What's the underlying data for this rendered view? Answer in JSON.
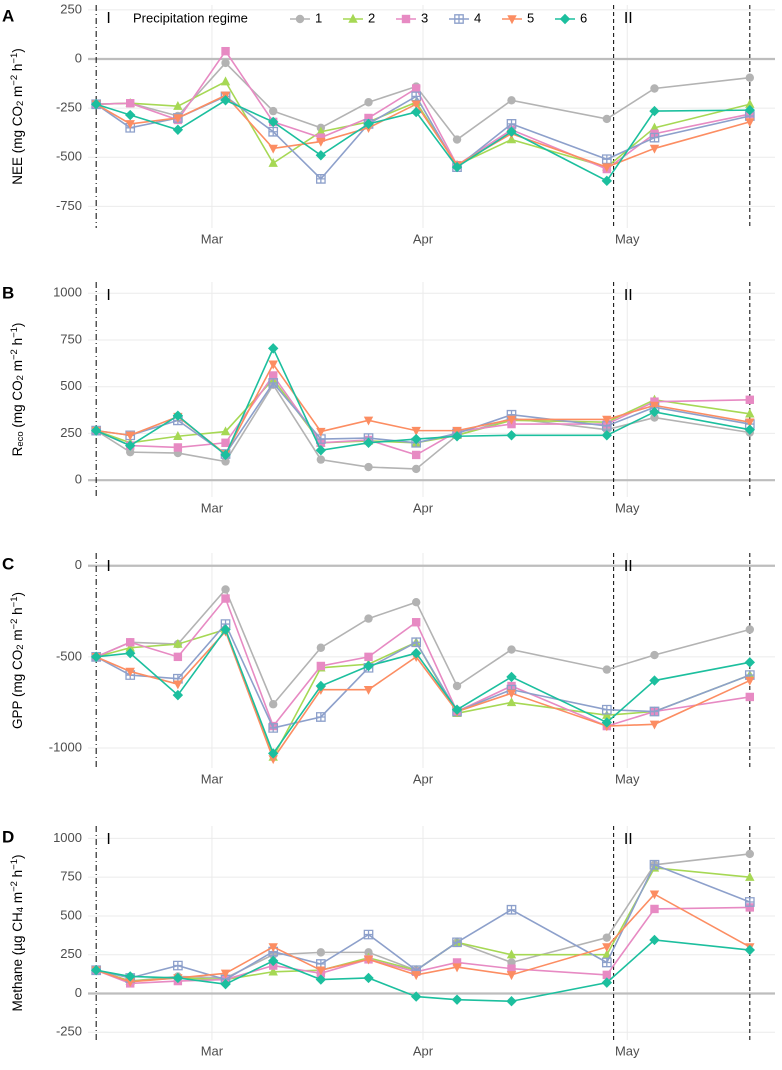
{
  "chart_data": [
    {
      "type": "line",
      "letter": "A",
      "ylabel": [
        [
          "NEE (mg CO",
          ""
        ],
        [
          "2",
          "sub"
        ],
        [
          " m",
          ""
        ],
        [
          "−2",
          "sup"
        ],
        [
          " h",
          ""
        ],
        [
          "−1",
          "sup"
        ],
        [
          ")",
          ""
        ]
      ],
      "legend_title": "Precipitation regime",
      "x": [
        43,
        48,
        55,
        62,
        69,
        76,
        83,
        90,
        96,
        104,
        118,
        125,
        139
      ],
      "xlim": [
        41.8,
        142.7
      ],
      "xticks": [
        {
          "value": 60,
          "label": "Mar"
        },
        {
          "value": 91,
          "label": "Apr"
        },
        {
          "value": 121,
          "label": "May"
        }
      ],
      "ylim": [
        -860,
        275
      ],
      "yticks": [
        -750,
        -500,
        -250,
        0,
        250
      ],
      "grid": true,
      "hline": 0,
      "vlines": [
        {
          "x": 43,
          "style": "dashdot"
        },
        {
          "x": 119,
          "style": "dashed"
        },
        {
          "x": 139,
          "style": "dashed"
        }
      ],
      "annotations": [
        {
          "text": "I",
          "x": 44.5
        },
        {
          "text": "II",
          "x": 120.5
        }
      ],
      "series": [
        {
          "name": "1",
          "color": "#b3b3b3",
          "marker": "circle",
          "values": [
            -230,
            -225,
            -290,
            -20,
            -265,
            -350,
            -220,
            -140,
            -410,
            -210,
            -305,
            -150,
            -95
          ]
        },
        {
          "name": "2",
          "color": "#a6d854",
          "marker": "triangle",
          "values": [
            -230,
            -225,
            -240,
            -115,
            -530,
            -370,
            -320,
            -220,
            -540,
            -410,
            -550,
            -350,
            -230
          ]
        },
        {
          "name": "3",
          "color": "#e78ac3",
          "marker": "square",
          "values": [
            -230,
            -225,
            -310,
            40,
            -320,
            -400,
            -300,
            -150,
            -540,
            -360,
            -560,
            -380,
            -280
          ]
        },
        {
          "name": "4",
          "color": "#8da0cb",
          "marker": "squarecross",
          "values": [
            -230,
            -350,
            -300,
            -190,
            -370,
            -610,
            -330,
            -190,
            -550,
            -330,
            -510,
            -400,
            -290
          ]
        },
        {
          "name": "5",
          "color": "#fc8d62",
          "marker": "downtriangle",
          "values": [
            -230,
            -330,
            -300,
            -185,
            -455,
            -420,
            -350,
            -230,
            -540,
            -380,
            -550,
            -455,
            -320
          ]
        },
        {
          "name": "6",
          "color": "#1cbf9e",
          "marker": "diamond",
          "values": [
            -230,
            -285,
            -360,
            -210,
            -320,
            -490,
            -330,
            -270,
            -550,
            -370,
            -620,
            -265,
            -260
          ]
        }
      ]
    },
    {
      "type": "line",
      "letter": "B",
      "ylabel": [
        [
          "R",
          ""
        ],
        [
          "eco",
          "sub"
        ],
        [
          " (mg CO",
          ""
        ],
        [
          "2",
          "sub"
        ],
        [
          " m",
          ""
        ],
        [
          "−2",
          "sup"
        ],
        [
          " h",
          ""
        ],
        [
          "−1",
          "sup"
        ],
        [
          ")",
          ""
        ]
      ],
      "x": [
        43,
        48,
        55,
        62,
        69,
        76,
        83,
        90,
        96,
        104,
        118,
        125,
        139
      ],
      "xlim": [
        41.8,
        142.7
      ],
      "xticks": [
        {
          "value": 60,
          "label": "Mar"
        },
        {
          "value": 91,
          "label": "Apr"
        },
        {
          "value": 121,
          "label": "May"
        }
      ],
      "ylim": [
        -90,
        1060
      ],
      "yticks": [
        0,
        250,
        500,
        750,
        1000
      ],
      "grid": true,
      "hline": 0,
      "vlines": [
        {
          "x": 43,
          "style": "dashdot"
        },
        {
          "x": 119,
          "style": "dashed"
        },
        {
          "x": 139,
          "style": "dashed"
        }
      ],
      "annotations": [
        {
          "text": "I",
          "x": 44.5
        },
        {
          "text": "II",
          "x": 120.5
        }
      ],
      "series": [
        {
          "name": "1",
          "color": "#b3b3b3",
          "marker": "circle",
          "values": [
            265,
            150,
            145,
            100,
            510,
            110,
            70,
            60,
            240,
            330,
            270,
            335,
            255
          ]
        },
        {
          "name": "2",
          "color": "#a6d854",
          "marker": "triangle",
          "values": [
            265,
            200,
            235,
            260,
            540,
            200,
            210,
            200,
            240,
            320,
            310,
            430,
            355
          ]
        },
        {
          "name": "3",
          "color": "#e78ac3",
          "marker": "square",
          "values": [
            265,
            185,
            175,
            200,
            560,
            200,
            215,
            135,
            260,
            300,
            300,
            420,
            430
          ]
        },
        {
          "name": "4",
          "color": "#8da0cb",
          "marker": "squarecross",
          "values": [
            265,
            240,
            320,
            140,
            520,
            220,
            225,
            200,
            250,
            350,
            290,
            390,
            300
          ]
        },
        {
          "name": "5",
          "color": "#fc8d62",
          "marker": "downtriangle",
          "values": [
            265,
            240,
            340,
            140,
            620,
            260,
            320,
            265,
            265,
            325,
            325,
            400,
            310
          ]
        },
        {
          "name": "6",
          "color": "#1cbf9e",
          "marker": "diamond",
          "values": [
            265,
            185,
            345,
            135,
            705,
            160,
            200,
            220,
            235,
            240,
            240,
            365,
            270
          ]
        }
      ]
    },
    {
      "type": "line",
      "letter": "C",
      "ylabel": [
        [
          "GPP (mg CO",
          ""
        ],
        [
          "2",
          "sub"
        ],
        [
          " m",
          ""
        ],
        [
          "−2",
          "sup"
        ],
        [
          " h",
          ""
        ],
        [
          "−1",
          "sup"
        ],
        [
          ")",
          ""
        ]
      ],
      "x": [
        43,
        48,
        55,
        62,
        69,
        76,
        83,
        90,
        96,
        104,
        118,
        125,
        139
      ],
      "xlim": [
        41.8,
        142.7
      ],
      "xticks": [
        {
          "value": 60,
          "label": "Mar"
        },
        {
          "value": 91,
          "label": "Apr"
        },
        {
          "value": 121,
          "label": "May"
        }
      ],
      "ylim": [
        -1110,
        70
      ],
      "yticks": [
        -1000,
        -500,
        0
      ],
      "grid": true,
      "hline": 0,
      "vlines": [
        {
          "x": 43,
          "style": "dashdot"
        },
        {
          "x": 119,
          "style": "dashed"
        },
        {
          "x": 139,
          "style": "dashed"
        }
      ],
      "annotations": [
        {
          "text": "I",
          "x": 44.5
        },
        {
          "text": "II",
          "x": 120.5
        }
      ],
      "series": [
        {
          "name": "1",
          "color": "#b3b3b3",
          "marker": "circle",
          "values": [
            -500,
            -420,
            -430,
            -130,
            -760,
            -450,
            -290,
            -200,
            -660,
            -460,
            -570,
            -490,
            -350
          ]
        },
        {
          "name": "2",
          "color": "#a6d854",
          "marker": "triangle",
          "values": [
            -500,
            -450,
            -430,
            -350,
            -1050,
            -560,
            -540,
            -420,
            -810,
            -750,
            -820,
            -800,
            -600
          ]
        },
        {
          "name": "3",
          "color": "#e78ac3",
          "marker": "square",
          "values": [
            -500,
            -420,
            -500,
            -180,
            -880,
            -550,
            -500,
            -310,
            -800,
            -660,
            -880,
            -800,
            -720
          ]
        },
        {
          "name": "4",
          "color": "#8da0cb",
          "marker": "squarecross",
          "values": [
            -500,
            -600,
            -620,
            -320,
            -890,
            -830,
            -560,
            -420,
            -800,
            -680,
            -790,
            -800,
            -600
          ]
        },
        {
          "name": "5",
          "color": "#fc8d62",
          "marker": "downtriangle",
          "values": [
            -500,
            -580,
            -650,
            -360,
            -1060,
            -680,
            -680,
            -500,
            -800,
            -700,
            -880,
            -870,
            -630
          ]
        },
        {
          "name": "6",
          "color": "#1cbf9e",
          "marker": "diamond",
          "values": [
            -500,
            -480,
            -710,
            -350,
            -1030,
            -660,
            -550,
            -480,
            -790,
            -610,
            -860,
            -630,
            -530
          ]
        }
      ]
    },
    {
      "type": "line",
      "letter": "D",
      "ylabel": [
        [
          "Methane (µg CH",
          ""
        ],
        [
          "4",
          "sub"
        ],
        [
          " m",
          ""
        ],
        [
          "−2",
          "sup"
        ],
        [
          " h",
          ""
        ],
        [
          "−1",
          "sup"
        ],
        [
          ")",
          ""
        ]
      ],
      "x": [
        43,
        48,
        55,
        62,
        69,
        76,
        83,
        90,
        96,
        104,
        118,
        125,
        139
      ],
      "xlim": [
        41.8,
        142.7
      ],
      "xticks": [
        {
          "value": 60,
          "label": "Mar"
        },
        {
          "value": 91,
          "label": "Apr"
        },
        {
          "value": 121,
          "label": "May"
        }
      ],
      "ylim": [
        -300,
        1080
      ],
      "yticks": [
        -250,
        0,
        250,
        500,
        750,
        1000
      ],
      "grid": true,
      "hline": 0,
      "vlines": [
        {
          "x": 43,
          "style": "dashdot"
        },
        {
          "x": 119,
          "style": "dashed"
        },
        {
          "x": 139,
          "style": "dashed"
        }
      ],
      "annotations": [
        {
          "text": "I",
          "x": 44.5
        },
        {
          "text": "II",
          "x": 120.5
        }
      ],
      "series": [
        {
          "name": "1",
          "color": "#b3b3b3",
          "marker": "circle",
          "values": [
            150,
            80,
            110,
            100,
            250,
            265,
            265,
            150,
            330,
            200,
            360,
            830,
            900
          ]
        },
        {
          "name": "2",
          "color": "#a6d854",
          "marker": "triangle",
          "values": [
            150,
            80,
            100,
            90,
            140,
            150,
            230,
            150,
            330,
            250,
            250,
            810,
            750
          ]
        },
        {
          "name": "3",
          "color": "#e78ac3",
          "marker": "square",
          "values": [
            150,
            65,
            80,
            90,
            180,
            130,
            220,
            140,
            200,
            160,
            120,
            545,
            555
          ]
        },
        {
          "name": "4",
          "color": "#8da0cb",
          "marker": "squarecross",
          "values": [
            150,
            100,
            180,
            90,
            270,
            190,
            380,
            150,
            330,
            540,
            200,
            830,
            590
          ]
        },
        {
          "name": "5",
          "color": "#fc8d62",
          "marker": "downtriangle",
          "values": [
            150,
            75,
            100,
            130,
            300,
            150,
            220,
            120,
            170,
            120,
            300,
            640,
            300
          ]
        },
        {
          "name": "6",
          "color": "#1cbf9e",
          "marker": "diamond",
          "values": [
            150,
            110,
            100,
            60,
            210,
            90,
            100,
            -20,
            -40,
            -50,
            70,
            345,
            280
          ]
        }
      ]
    }
  ]
}
